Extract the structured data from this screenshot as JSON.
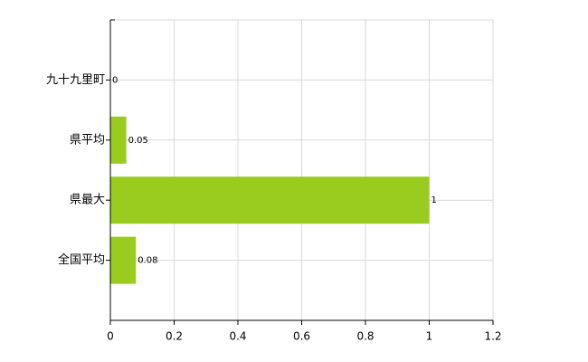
{
  "chart_data": {
    "type": "barh",
    "categories": [
      "九十九里町",
      "県平均",
      "県最大",
      "全国平均"
    ],
    "values": [
      0,
      0.05,
      1,
      0.08
    ],
    "color": "#99cc1f",
    "xlim": [
      0,
      1.2
    ],
    "xticks": [
      0,
      0.2,
      0.4,
      0.6,
      0.8,
      1,
      1.2
    ],
    "grid": true
  }
}
